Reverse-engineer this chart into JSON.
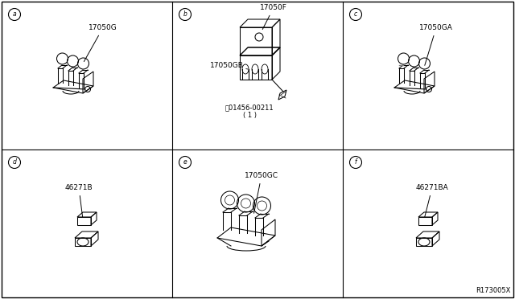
{
  "background_color": "#ffffff",
  "border_color": "#000000",
  "diagram_ref": "R173005X",
  "panels": [
    {
      "id": "a",
      "col": 0,
      "row": 0,
      "part": "17050G"
    },
    {
      "id": "b",
      "col": 1,
      "row": 0,
      "part": "17050F",
      "sub_part": "17050GB",
      "note": "S01456-00211\n( 1 )"
    },
    {
      "id": "c",
      "col": 2,
      "row": 0,
      "part": "17050GA"
    },
    {
      "id": "d",
      "col": 0,
      "row": 1,
      "part": "46271B"
    },
    {
      "id": "e",
      "col": 1,
      "row": 1,
      "part": "17050GC"
    },
    {
      "id": "f",
      "col": 2,
      "row": 1,
      "part": "46271BA"
    }
  ],
  "line_color": "#000000",
  "font_size_label": 6.5,
  "font_size_ref": 6,
  "lw": 0.7
}
